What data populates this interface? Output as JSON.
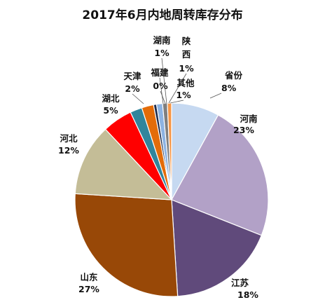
{
  "chart_data": {
    "type": "pie",
    "title": "2017年6月内地周转库存分布",
    "slices": [
      {
        "name": "省份",
        "value": 8,
        "label": "8%",
        "color": "#c6d9f1"
      },
      {
        "name": "河南",
        "value": 23,
        "label": "23%",
        "color": "#b2a1c7"
      },
      {
        "name": "江苏",
        "value": 18,
        "label": "18%",
        "color": "#604a7b"
      },
      {
        "name": "山东",
        "value": 27,
        "label": "27%",
        "color": "#984807"
      },
      {
        "name": "河北",
        "value": 12,
        "label": "12%",
        "color": "#c4bd97"
      },
      {
        "name": "湖北",
        "value": 5,
        "label": "5%",
        "color": "#ff0000"
      },
      {
        "name": "天津",
        "value": 2,
        "label": "2%",
        "color": "#31859c"
      },
      {
        "name": "福建",
        "value": 2,
        "label": "2%",
        "color": "#e36c09"
      },
      {
        "name": "福建",
        "value": 0.5,
        "label": "0%",
        "color": "#1f2d4d"
      },
      {
        "name": "湖南",
        "value": 1,
        "label": "1%",
        "color": "#8db3e2"
      },
      {
        "name": "陕西",
        "value": 0.8,
        "label": "1%",
        "color": "#7f7f7f"
      },
      {
        "name": "其他",
        "value": 0.7,
        "label": "1%",
        "color": "#f79646"
      }
    ]
  }
}
